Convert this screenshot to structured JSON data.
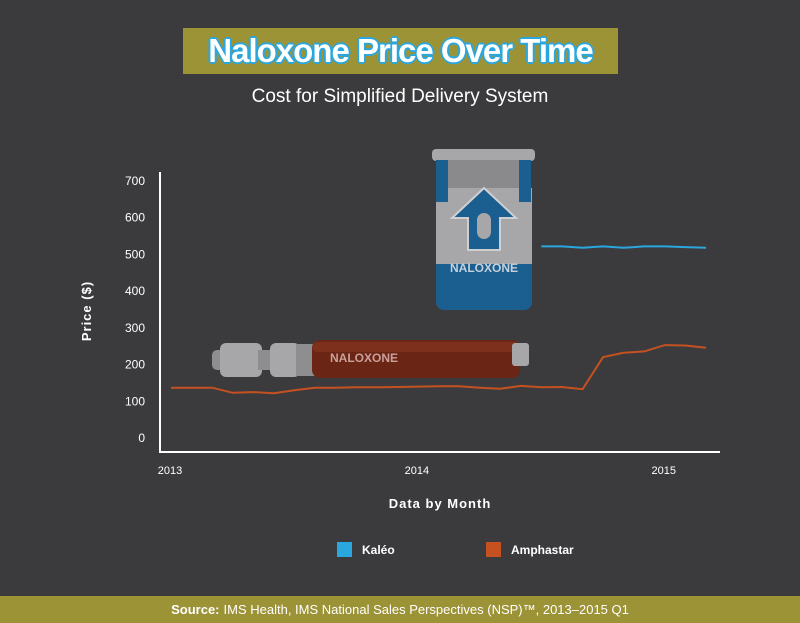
{
  "title": "Naloxone Price Over Time",
  "subtitle": "Cost for Simplified Delivery System",
  "footer": {
    "label": "Source:",
    "text": "IMS Health, IMS National Sales Perspectives (NSP)™, 2013–2015 Q1"
  },
  "illustrations": {
    "autoinjector_label": "NALOXONE",
    "syringe_label": "NALOXONE"
  },
  "colors": {
    "background": "#3b3b3d",
    "accent": "#9c9236",
    "kaleo": "#2aa7df",
    "amphastar": "#c4511f"
  },
  "chart_data": {
    "type": "line",
    "xlabel": "Data by Month",
    "ylabel": "Price ($)",
    "ylim": [
      0,
      700
    ],
    "yticks": [
      0,
      100,
      200,
      300,
      400,
      500,
      600,
      700
    ],
    "xlim": [
      2013.0,
      2015.2
    ],
    "xticks": [
      {
        "value": 2013,
        "label": "2013"
      },
      {
        "value": 2014,
        "label": "2014"
      },
      {
        "value": 2015,
        "label": "2015"
      }
    ],
    "legend_position": "bottom",
    "series": [
      {
        "name": "Kaléo",
        "color": "#2aa7df",
        "x": [
          2014.5,
          2014.583,
          2014.667,
          2014.75,
          2014.833,
          2014.917,
          2015.0,
          2015.083,
          2015.167
        ],
        "y": [
          522,
          522,
          518,
          522,
          518,
          522,
          522,
          520,
          518
        ]
      },
      {
        "name": "Amphastar",
        "color": "#c4511f",
        "x": [
          2013.0,
          2013.083,
          2013.167,
          2013.25,
          2013.333,
          2013.417,
          2013.5,
          2013.583,
          2013.667,
          2013.75,
          2013.833,
          2013.917,
          2014.0,
          2014.083,
          2014.167,
          2014.25,
          2014.333,
          2014.417,
          2014.5,
          2014.583,
          2014.667,
          2014.75,
          2014.833,
          2014.917,
          2015.0,
          2015.083,
          2015.167
        ],
        "y": [
          137,
          137,
          137,
          123,
          125,
          122,
          130,
          137,
          137,
          138,
          138,
          139,
          140,
          141,
          141,
          137,
          134,
          142,
          138,
          139,
          133,
          220,
          232,
          236,
          253,
          252,
          246
        ]
      }
    ]
  }
}
